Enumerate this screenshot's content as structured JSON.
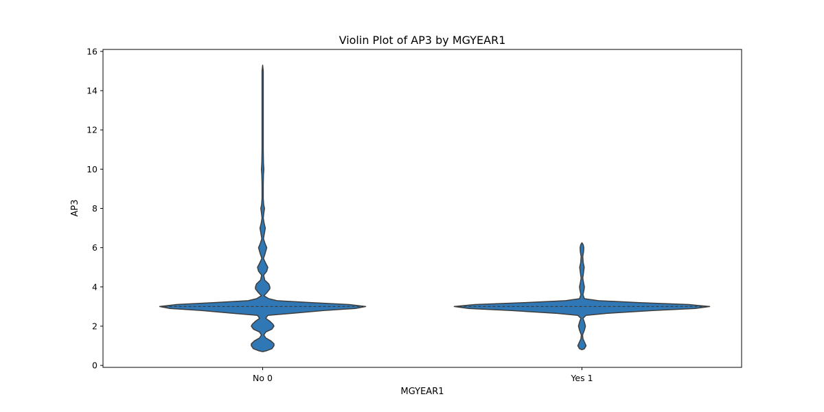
{
  "chart_data": {
    "type": "violin",
    "title": "Violin Plot of AP3 by MGYEAR1",
    "xlabel": "MGYEAR1",
    "ylabel": "AP3",
    "categories": [
      "No 0",
      "Yes 1"
    ],
    "ylim": [
      -0.1,
      16.1
    ],
    "yticks": [
      "0",
      "2",
      "4",
      "6",
      "8",
      "10",
      "12",
      "14",
      "16"
    ],
    "grid": false,
    "color": "#2f78b5",
    "edge_color": "#3d3d3d",
    "violins": [
      {
        "category": "No 0",
        "median": 3,
        "profile": [
          [
            0.7,
            0.0
          ],
          [
            0.75,
            0.02
          ],
          [
            0.85,
            0.045
          ],
          [
            1.0,
            0.055
          ],
          [
            1.1,
            0.055
          ],
          [
            1.25,
            0.04
          ],
          [
            1.4,
            0.015
          ],
          [
            1.55,
            0.006
          ],
          [
            1.7,
            0.015
          ],
          [
            1.85,
            0.045
          ],
          [
            2.0,
            0.055
          ],
          [
            2.1,
            0.05
          ],
          [
            2.25,
            0.035
          ],
          [
            2.4,
            0.015
          ],
          [
            2.55,
            0.025
          ],
          [
            2.65,
            0.14
          ],
          [
            2.8,
            0.3
          ],
          [
            2.9,
            0.45
          ],
          [
            3.0,
            0.5
          ],
          [
            3.1,
            0.42
          ],
          [
            3.2,
            0.24
          ],
          [
            3.3,
            0.07
          ],
          [
            3.4,
            0.03
          ],
          [
            3.55,
            0.006
          ],
          [
            3.7,
            0.02
          ],
          [
            3.9,
            0.035
          ],
          [
            4.0,
            0.035
          ],
          [
            4.15,
            0.03
          ],
          [
            4.35,
            0.01
          ],
          [
            4.6,
            0.005
          ],
          [
            4.8,
            0.02
          ],
          [
            5.0,
            0.025
          ],
          [
            5.2,
            0.015
          ],
          [
            5.45,
            0.004
          ],
          [
            5.7,
            0.012
          ],
          [
            6.0,
            0.02
          ],
          [
            6.2,
            0.012
          ],
          [
            6.45,
            0.004
          ],
          [
            6.7,
            0.008
          ],
          [
            7.0,
            0.013
          ],
          [
            7.2,
            0.008
          ],
          [
            7.5,
            0.003
          ],
          [
            7.7,
            0.005
          ],
          [
            8.0,
            0.009
          ],
          [
            8.2,
            0.005
          ],
          [
            8.5,
            0.003
          ],
          [
            9.2,
            0.003
          ],
          [
            9.7,
            0.004
          ],
          [
            10.0,
            0.006
          ],
          [
            10.3,
            0.004
          ],
          [
            11.0,
            0.003
          ],
          [
            12.0,
            0.003
          ],
          [
            13.0,
            0.003
          ],
          [
            14.0,
            0.003
          ],
          [
            15.0,
            0.003
          ],
          [
            15.3,
            0.0
          ]
        ]
      },
      {
        "category": "Yes 1",
        "median": 3,
        "profile": [
          [
            0.8,
            0.0
          ],
          [
            0.85,
            0.012
          ],
          [
            1.0,
            0.02
          ],
          [
            1.15,
            0.014
          ],
          [
            1.35,
            0.005
          ],
          [
            1.55,
            0.003
          ],
          [
            1.8,
            0.012
          ],
          [
            2.0,
            0.017
          ],
          [
            2.2,
            0.012
          ],
          [
            2.4,
            0.005
          ],
          [
            2.55,
            0.02
          ],
          [
            2.65,
            0.12
          ],
          [
            2.8,
            0.35
          ],
          [
            2.9,
            0.55
          ],
          [
            3.0,
            0.62
          ],
          [
            3.1,
            0.52
          ],
          [
            3.2,
            0.28
          ],
          [
            3.3,
            0.08
          ],
          [
            3.4,
            0.012
          ],
          [
            3.6,
            0.005
          ],
          [
            3.85,
            0.01
          ],
          [
            4.0,
            0.012
          ],
          [
            4.2,
            0.008
          ],
          [
            4.45,
            0.004
          ],
          [
            4.75,
            0.008
          ],
          [
            5.0,
            0.011
          ],
          [
            5.25,
            0.006
          ],
          [
            5.55,
            0.004
          ],
          [
            5.8,
            0.008
          ],
          [
            6.0,
            0.009
          ],
          [
            6.15,
            0.006
          ],
          [
            6.25,
            0.0
          ]
        ]
      }
    ]
  }
}
